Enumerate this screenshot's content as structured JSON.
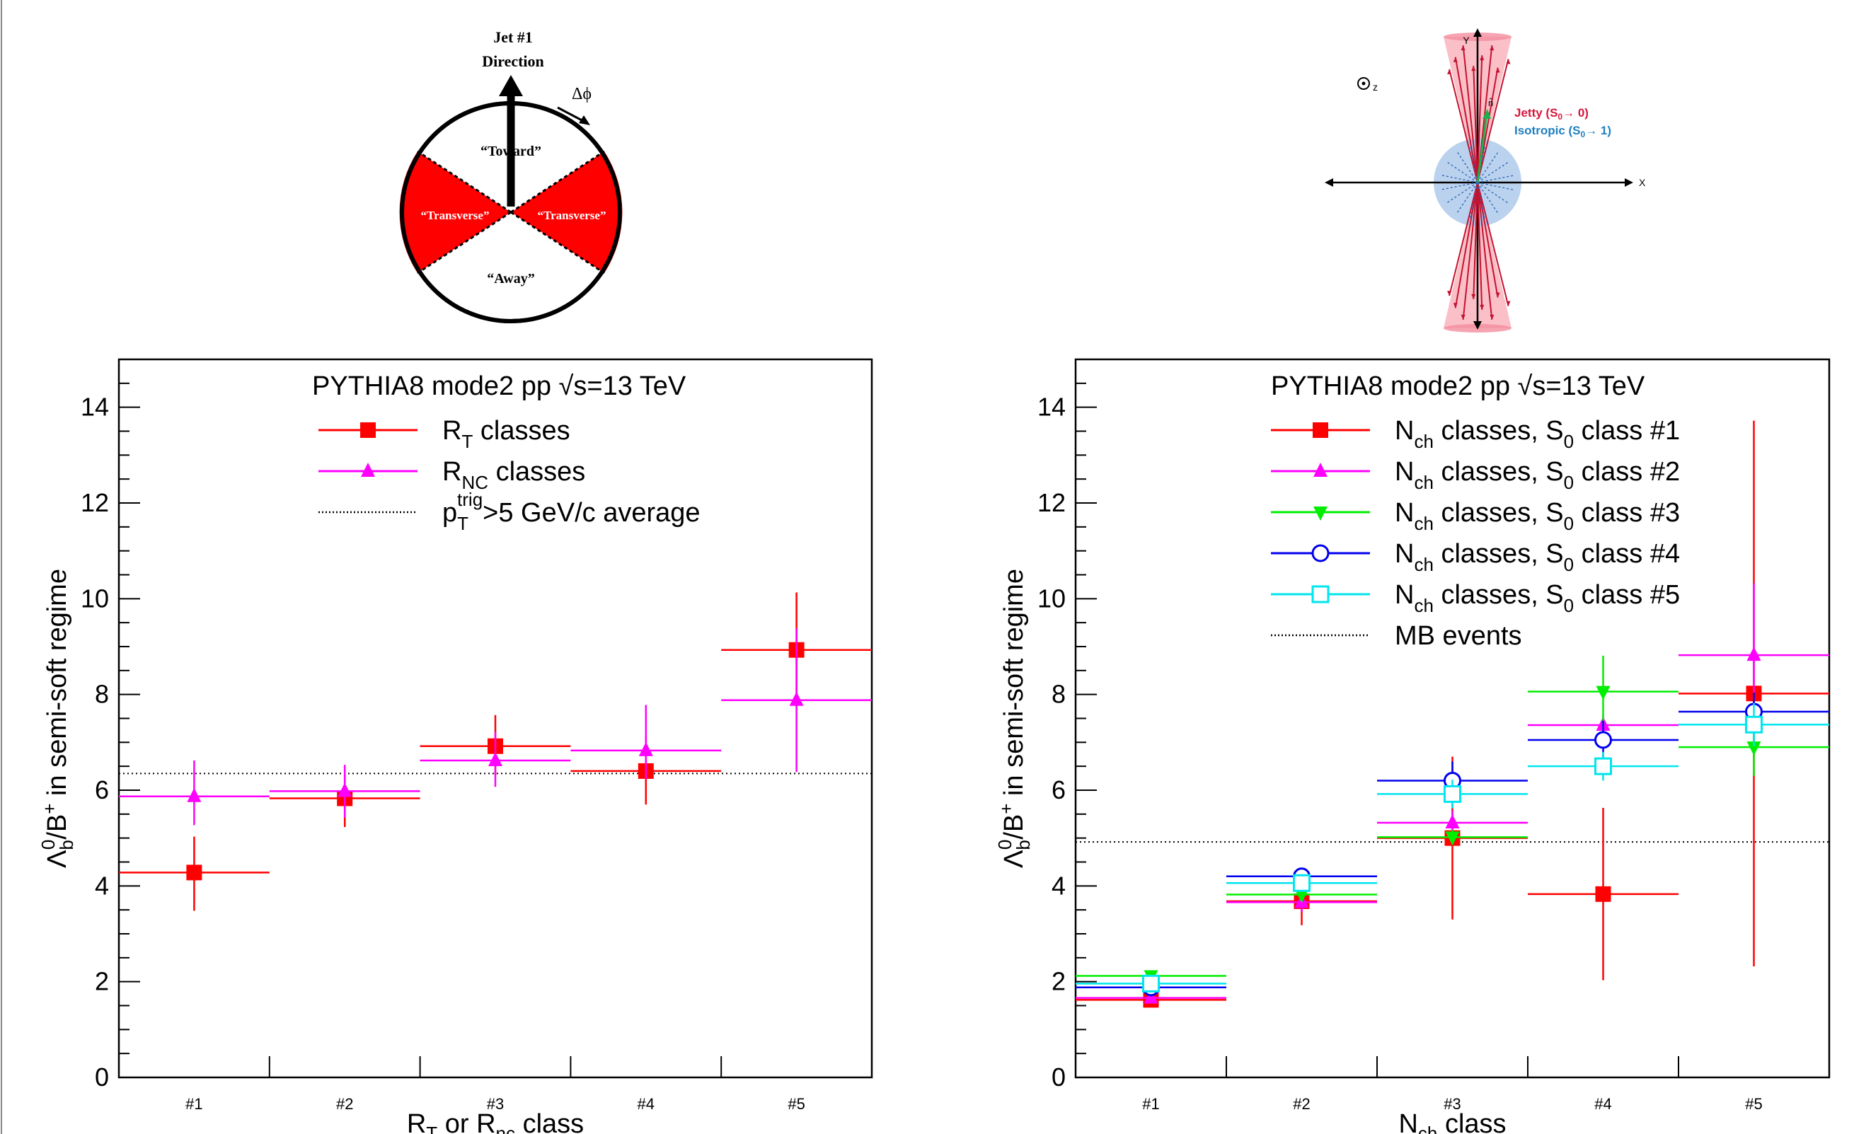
{
  "diagram_left": {
    "arrow_label_line1": "Jet #1",
    "arrow_label_line2": "Direction",
    "dphi_label": "Δϕ",
    "toward": "“Toward”",
    "away": "“Away”",
    "transverse": "“Transverse”"
  },
  "diagram_right": {
    "axis_z": "z",
    "axis_y": "Y",
    "axis_x": "X",
    "vector_label": "n̂",
    "jetty_text": "Jetty (S",
    "jetty_tail": "→ 0)",
    "isotropic_text": "Isotropic (S",
    "isotropic_tail": "→ 1)",
    "subscript_zero": "0",
    "jetty_color": "#d6163c",
    "isotropic_color": "#1f7fc0"
  },
  "chart_data": [
    {
      "type": "scatter",
      "title": "PYTHIA8 mode2 pp √s=13 TeV",
      "title_main": "PYTHIA8 mode2 pp ",
      "title_sqrt": "√s=13 TeV",
      "ylabel": "Λb0/B+ in semi-soft regime",
      "xlabel": "RT or Rnc class",
      "categories": [
        "#1",
        "#2",
        "#3",
        "#4",
        "#5"
      ],
      "ylim": [
        0,
        15
      ],
      "yticks": [
        "0",
        "2",
        "4",
        "6",
        "8",
        "10",
        "12",
        "14"
      ],
      "series": [
        {
          "name": "RT classes",
          "color": "#ff0000",
          "marker": "square",
          "values": [
            4.28,
            5.83,
            6.92,
            6.4,
            8.93
          ],
          "err_low": [
            0.8,
            0.6,
            0.6,
            0.7,
            1.2
          ],
          "err_high": [
            0.75,
            0.5,
            0.65,
            0.75,
            1.2
          ]
        },
        {
          "name": "RNC classes",
          "color": "#ff00ff",
          "marker": "triangle",
          "values": [
            5.87,
            5.98,
            6.62,
            6.83,
            7.88
          ],
          "err_low": [
            0.6,
            0.55,
            0.55,
            0.6,
            1.5
          ],
          "err_high": [
            0.75,
            0.55,
            0.6,
            0.95,
            1.5
          ]
        }
      ],
      "reference_line": {
        "name": "pTtrig>5 GeV/c average",
        "value": 6.35
      },
      "legend": [
        {
          "text": "R",
          "sub": "T",
          "tail": " classes"
        },
        {
          "text": "R",
          "sub": "NC",
          "tail": " classes"
        },
        {
          "text": "p",
          "sub": "T",
          "sup": "trig",
          "tail": ">5 GeV/c average"
        }
      ],
      "xlabel_parts": {
        "a": "R",
        "a_sub": "T",
        "b": " or R",
        "b_sub": "nc",
        "c": " class"
      }
    },
    {
      "type": "scatter",
      "title": "PYTHIA8 mode2 pp √s=13 TeV",
      "title_main": "PYTHIA8 mode2 pp ",
      "title_sqrt": "√s=13 TeV",
      "ylabel": "Λb0/B+ in semi-soft regime",
      "xlabel": "Nch class",
      "categories": [
        "#1",
        "#2",
        "#3",
        "#4",
        "#5"
      ],
      "ylim": [
        0,
        15
      ],
      "yticks": [
        "0",
        "2",
        "4",
        "6",
        "8",
        "10",
        "12",
        "14"
      ],
      "series": [
        {
          "name": "Nch classes, S0 class #1",
          "color": "#ff0000",
          "marker": "square",
          "values": [
            1.62,
            3.68,
            5.0,
            3.83,
            8.02
          ],
          "err_low": [
            0.1,
            0.5,
            1.7,
            1.8,
            5.7
          ],
          "err_high": [
            0.1,
            0.5,
            1.7,
            1.8,
            5.7
          ]
        },
        {
          "name": "Nch classes, S0 class #2",
          "color": "#ff00ff",
          "marker": "triangle",
          "values": [
            1.66,
            3.66,
            5.32,
            7.36,
            8.82
          ],
          "err_low": [
            0.1,
            0.2,
            0.25,
            0.2,
            1.5
          ],
          "err_high": [
            0.1,
            0.2,
            0.25,
            0.2,
            1.5
          ]
        },
        {
          "name": "Nch classes, S0 class #3",
          "color": "#00ee00",
          "marker": "triangle-down",
          "values": [
            2.12,
            3.82,
            5.02,
            8.06,
            6.9
          ],
          "err_low": [
            0.1,
            0.15,
            0.15,
            0.7,
            0.6
          ],
          "err_high": [
            0.1,
            0.15,
            0.15,
            0.75,
            0.6
          ]
        },
        {
          "name": "Nch classes, S0 class #4",
          "color": "#0000ee",
          "marker": "circle",
          "values": [
            1.88,
            4.2,
            6.2,
            7.05,
            7.64
          ],
          "err_low": [
            0.1,
            0.15,
            0.4,
            0.4,
            0.4
          ],
          "err_high": [
            0.1,
            0.15,
            0.4,
            0.4,
            0.4
          ]
        },
        {
          "name": "Nch classes, S0 class #5",
          "color": "#00e5ee",
          "marker": "square-open",
          "values": [
            1.96,
            4.06,
            5.92,
            6.5,
            7.37
          ],
          "err_low": [
            0.1,
            0.15,
            0.3,
            0.3,
            0.45
          ],
          "err_high": [
            0.1,
            0.15,
            0.3,
            0.3,
            0.45
          ]
        }
      ],
      "reference_line": {
        "name": "MB events",
        "value": 4.92
      },
      "legend": [
        {
          "text": "N",
          "sub": "ch",
          "tail": " classes, S",
          "sub2": "0",
          "tail2": " class #1"
        },
        {
          "text": "N",
          "sub": "ch",
          "tail": " classes, S",
          "sub2": "0",
          "tail2": " class #2"
        },
        {
          "text": "N",
          "sub": "ch",
          "tail": " classes, S",
          "sub2": "0",
          "tail2": " class #3"
        },
        {
          "text": "N",
          "sub": "ch",
          "tail": " classes, S",
          "sub2": "0",
          "tail2": " class #4"
        },
        {
          "text": "N",
          "sub": "ch",
          "tail": " classes, S",
          "sub2": "0",
          "tail2": " class #5"
        },
        {
          "text": "MB events"
        }
      ],
      "xlabel_parts": {
        "a": "N",
        "a_sub": "ch",
        "b": " class"
      }
    }
  ]
}
